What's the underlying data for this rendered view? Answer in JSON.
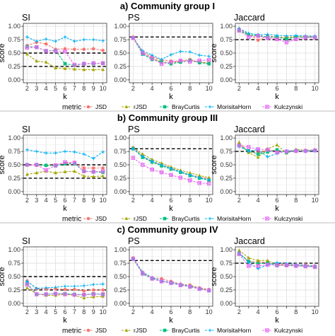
{
  "groups": [
    {
      "title": "a) Community group I"
    },
    {
      "title": "b) Community group III"
    },
    {
      "title": "c) Community group IV"
    }
  ],
  "panels": [
    "SI",
    "PS",
    "Jaccard"
  ],
  "legend": {
    "title": "metric",
    "items": [
      {
        "label": "JSD",
        "color": "#F8766D",
        "marker": "circle"
      },
      {
        "label": "rJSD",
        "color": "#A3A500",
        "marker": "triangle"
      },
      {
        "label": "BrayCurtis",
        "color": "#00BF7D",
        "marker": "square"
      },
      {
        "label": "MorisitaHorn",
        "color": "#00B0F6",
        "marker": "plus"
      },
      {
        "label": "Kulczynski",
        "color": "#E76BF3",
        "marker": "boxx"
      }
    ]
  },
  "chart_data": [
    {
      "type": "line",
      "group": "a) Community group I",
      "panel": "SI",
      "xlabel": "k",
      "ylabel": "score",
      "x": [
        2,
        3,
        4,
        5,
        6,
        7,
        8,
        9,
        10
      ],
      "ylim": [
        0,
        1.0
      ],
      "yticks": [
        "0.00",
        "0.25",
        "0.50",
        "0.75",
        "1.00"
      ],
      "reference_lines": [
        0.5,
        0.25
      ],
      "series": [
        {
          "name": "JSD",
          "values": [
            0.64,
            0.7,
            0.67,
            0.57,
            0.58,
            0.57,
            0.57,
            0.58,
            0.55
          ]
        },
        {
          "name": "rJSD",
          "values": [
            0.48,
            0.35,
            0.33,
            0.22,
            0.21,
            0.2,
            0.19,
            0.19,
            0.19
          ]
        },
        {
          "name": "BrayCurtis",
          "values": [
            0.62,
            0.61,
            0.54,
            0.55,
            0.3,
            0.27,
            0.3,
            0.3,
            0.31
          ]
        },
        {
          "name": "MorisitaHorn",
          "values": [
            0.8,
            0.72,
            0.76,
            0.72,
            0.8,
            0.72,
            0.75,
            0.75,
            0.73
          ]
        },
        {
          "name": "Kulczynski",
          "values": [
            0.6,
            0.61,
            0.54,
            0.54,
            0.53,
            0.28,
            0.3,
            0.31,
            0.31
          ]
        }
      ]
    },
    {
      "type": "line",
      "group": "a) Community group I",
      "panel": "PS",
      "xlabel": "k",
      "ylabel": "",
      "x": [
        2,
        3,
        4,
        5,
        6,
        7,
        8,
        9,
        10
      ],
      "ylim": [
        0,
        1.0
      ],
      "yticks": [
        "0.00",
        "0.25",
        "0.50",
        "0.75",
        "1.00"
      ],
      "reference_lines": [
        0.8
      ],
      "series": [
        {
          "name": "JSD",
          "values": [
            0.8,
            0.52,
            0.43,
            0.37,
            0.35,
            0.35,
            0.38,
            0.33,
            0.31
          ]
        },
        {
          "name": "rJSD",
          "values": [
            0.79,
            0.5,
            0.4,
            0.34,
            0.31,
            0.34,
            0.36,
            0.33,
            0.31
          ]
        },
        {
          "name": "BrayCurtis",
          "values": [
            0.78,
            0.48,
            0.38,
            0.33,
            0.3,
            0.33,
            0.36,
            0.32,
            0.3
          ]
        },
        {
          "name": "MorisitaHorn",
          "values": [
            0.78,
            0.54,
            0.46,
            0.38,
            0.47,
            0.53,
            0.52,
            0.46,
            0.44
          ]
        },
        {
          "name": "Kulczynski",
          "values": [
            0.78,
            0.5,
            0.4,
            0.3,
            0.33,
            0.36,
            0.34,
            0.36,
            0.37
          ]
        }
      ]
    },
    {
      "type": "line",
      "group": "a) Community group I",
      "panel": "Jaccard",
      "xlabel": "k",
      "ylabel": "score",
      "x": [
        2,
        3,
        4,
        5,
        6,
        7,
        8,
        9,
        10
      ],
      "ylim": [
        0,
        1.0
      ],
      "yticks": [
        "0.00",
        "0.25",
        "0.50",
        "0.75",
        "1.00"
      ],
      "reference_lines": [
        0.75
      ],
      "series": [
        {
          "name": "JSD",
          "values": [
            0.95,
            0.85,
            0.74,
            0.82,
            0.8,
            0.79,
            0.8,
            0.81,
            0.8
          ]
        },
        {
          "name": "rJSD",
          "values": [
            0.92,
            0.84,
            0.82,
            0.8,
            0.79,
            0.79,
            0.81,
            0.8,
            0.81
          ]
        },
        {
          "name": "BrayCurtis",
          "values": [
            0.93,
            0.84,
            0.83,
            0.8,
            0.8,
            0.76,
            0.8,
            0.8,
            0.8
          ]
        },
        {
          "name": "MorisitaHorn",
          "values": [
            0.96,
            0.87,
            0.84,
            0.85,
            0.83,
            0.82,
            0.83,
            0.82,
            0.82
          ]
        },
        {
          "name": "Kulczynski",
          "values": [
            0.92,
            0.8,
            0.82,
            0.78,
            0.76,
            0.7,
            0.76,
            0.79,
            0.79
          ]
        }
      ]
    },
    {
      "type": "line",
      "group": "b) Community group III",
      "panel": "SI",
      "xlabel": "k",
      "ylabel": "score",
      "x": [
        2,
        3,
        4,
        5,
        6,
        7,
        8,
        9,
        10
      ],
      "ylim": [
        0,
        1.0
      ],
      "yticks": [
        "0.00",
        "0.25",
        "0.50",
        "0.75",
        "1.00"
      ],
      "reference_lines": [
        0.5,
        0.25
      ],
      "series": [
        {
          "name": "JSD",
          "values": [
            0.5,
            0.49,
            0.49,
            0.5,
            0.53,
            0.54,
            0.44,
            0.44,
            0.44
          ]
        },
        {
          "name": "rJSD",
          "values": [
            0.32,
            0.35,
            0.38,
            0.35,
            0.37,
            0.38,
            0.29,
            0.28,
            0.29
          ]
        },
        {
          "name": "BrayCurtis",
          "values": [
            0.5,
            0.5,
            0.49,
            0.48,
            0.52,
            0.52,
            0.38,
            0.37,
            0.36
          ]
        },
        {
          "name": "MorisitaHorn",
          "values": [
            0.78,
            0.75,
            0.72,
            0.72,
            0.75,
            0.74,
            0.7,
            0.62,
            0.74
          ]
        },
        {
          "name": "Kulczynski",
          "values": [
            0.5,
            0.5,
            0.4,
            0.49,
            0.55,
            0.54,
            0.38,
            0.37,
            0.38
          ]
        }
      ]
    },
    {
      "type": "line",
      "group": "b) Community group III",
      "panel": "PS",
      "xlabel": "k",
      "ylabel": "",
      "x": [
        2,
        3,
        4,
        5,
        6,
        7,
        8,
        9,
        10
      ],
      "ylim": [
        0,
        1.0
      ],
      "yticks": [
        "0.00",
        "0.25",
        "0.50",
        "0.75",
        "1.00"
      ],
      "reference_lines": [
        0.8
      ],
      "series": [
        {
          "name": "JSD",
          "values": [
            0.82,
            0.65,
            0.56,
            0.5,
            0.44,
            0.37,
            0.31,
            0.27,
            0.24
          ]
        },
        {
          "name": "rJSD",
          "values": [
            0.82,
            0.7,
            0.6,
            0.53,
            0.46,
            0.4,
            0.35,
            0.3,
            0.26
          ]
        },
        {
          "name": "BrayCurtis",
          "values": [
            0.8,
            0.64,
            0.55,
            0.48,
            0.42,
            0.36,
            0.3,
            0.25,
            0.21
          ]
        },
        {
          "name": "MorisitaHorn",
          "values": [
            0.8,
            0.66,
            0.57,
            0.5,
            0.43,
            0.37,
            0.31,
            0.26,
            0.22
          ]
        },
        {
          "name": "Kulczynski",
          "values": [
            0.63,
            0.5,
            0.41,
            0.36,
            0.31,
            0.26,
            0.21,
            0.16,
            0.15
          ]
        }
      ]
    },
    {
      "type": "line",
      "group": "b) Community group III",
      "panel": "Jaccard",
      "xlabel": "k",
      "ylabel": "score",
      "x": [
        2,
        3,
        4,
        5,
        6,
        7,
        8,
        9,
        10
      ],
      "ylim": [
        0,
        1.0
      ],
      "yticks": [
        "0.00",
        "0.25",
        "0.50",
        "0.75",
        "1.00"
      ],
      "reference_lines": [
        0.75
      ],
      "series": [
        {
          "name": "JSD",
          "values": [
            0.88,
            0.74,
            0.72,
            0.78,
            0.76,
            0.74,
            0.75,
            0.77,
            0.77
          ]
        },
        {
          "name": "rJSD",
          "values": [
            0.92,
            0.73,
            0.64,
            0.8,
            0.87,
            0.72,
            0.79,
            0.77,
            0.78
          ]
        },
        {
          "name": "BrayCurtis",
          "values": [
            0.86,
            0.76,
            0.7,
            0.74,
            0.78,
            0.73,
            0.76,
            0.76,
            0.77
          ]
        },
        {
          "name": "MorisitaHorn",
          "values": [
            0.84,
            0.76,
            0.78,
            0.65,
            0.71,
            0.76,
            0.77,
            0.75,
            0.76
          ]
        },
        {
          "name": "Kulczynski",
          "values": [
            0.86,
            0.83,
            0.79,
            0.78,
            0.73,
            0.75,
            0.76,
            0.76,
            0.77
          ]
        }
      ]
    },
    {
      "type": "line",
      "group": "c) Community group IV",
      "panel": "SI",
      "xlabel": "k",
      "ylabel": "score",
      "x": [
        2,
        3,
        4,
        5,
        6,
        7,
        8,
        9,
        10
      ],
      "ylim": [
        0,
        1.0
      ],
      "yticks": [
        "0.00",
        "0.25",
        "0.50",
        "0.75",
        "1.00"
      ],
      "reference_lines": [
        0.5,
        0.25
      ],
      "series": [
        {
          "name": "JSD",
          "values": [
            0.42,
            0.27,
            0.27,
            0.27,
            0.26,
            0.26,
            0.23,
            0.25,
            0.25
          ]
        },
        {
          "name": "rJSD",
          "values": [
            0.29,
            0.18,
            0.15,
            0.15,
            0.17,
            0.15,
            0.1,
            0.12,
            0.13
          ]
        },
        {
          "name": "BrayCurtis",
          "values": [
            0.37,
            0.17,
            0.17,
            0.18,
            0.18,
            0.17,
            0.16,
            0.18,
            0.17
          ]
        },
        {
          "name": "MorisitaHorn",
          "values": [
            0.41,
            0.28,
            0.29,
            0.3,
            0.32,
            0.32,
            0.33,
            0.35,
            0.36
          ]
        },
        {
          "name": "Kulczynski",
          "values": [
            0.35,
            0.17,
            0.17,
            0.18,
            0.17,
            0.16,
            0.16,
            0.17,
            0.17
          ]
        }
      ]
    },
    {
      "type": "line",
      "group": "c) Community group IV",
      "panel": "PS",
      "xlabel": "k",
      "ylabel": "",
      "x": [
        2,
        3,
        4,
        5,
        6,
        7,
        8,
        9,
        10
      ],
      "ylim": [
        0,
        1.0
      ],
      "yticks": [
        "0.00",
        "0.25",
        "0.50",
        "0.75",
        "1.00"
      ],
      "reference_lines": [
        0.8
      ],
      "series": [
        {
          "name": "JSD",
          "values": [
            0.85,
            0.58,
            0.48,
            0.46,
            0.41,
            0.36,
            0.34,
            0.29,
            0.26
          ]
        },
        {
          "name": "rJSD",
          "values": [
            0.84,
            0.57,
            0.47,
            0.42,
            0.39,
            0.35,
            0.33,
            0.28,
            0.25
          ]
        },
        {
          "name": "BrayCurtis",
          "values": [
            0.83,
            0.55,
            0.46,
            0.41,
            0.38,
            0.34,
            0.31,
            0.27,
            0.24
          ]
        },
        {
          "name": "MorisitaHorn",
          "values": [
            0.84,
            0.58,
            0.48,
            0.42,
            0.39,
            0.35,
            0.32,
            0.27,
            0.24
          ]
        },
        {
          "name": "Kulczynski",
          "values": [
            0.83,
            0.56,
            0.46,
            0.41,
            0.38,
            0.34,
            0.31,
            0.27,
            0.24
          ]
        }
      ]
    },
    {
      "type": "line",
      "group": "c) Community group IV",
      "panel": "Jaccard",
      "xlabel": "k",
      "ylabel": "score",
      "x": [
        2,
        3,
        4,
        5,
        6,
        7,
        8,
        9,
        10
      ],
      "ylim": [
        0,
        1.0
      ],
      "yticks": [
        "0.00",
        "0.25",
        "0.50",
        "0.75",
        "1.00"
      ],
      "reference_lines": [
        0.75
      ],
      "series": [
        {
          "name": "JSD",
          "values": [
            0.94,
            0.79,
            0.77,
            0.76,
            0.73,
            0.73,
            0.72,
            0.72,
            0.7
          ]
        },
        {
          "name": "rJSD",
          "values": [
            0.99,
            0.85,
            0.8,
            0.8,
            0.72,
            0.71,
            0.7,
            0.7,
            0.69
          ]
        },
        {
          "name": "BrayCurtis",
          "values": [
            0.93,
            0.78,
            0.74,
            0.75,
            0.71,
            0.71,
            0.7,
            0.7,
            0.68
          ]
        },
        {
          "name": "MorisitaHorn",
          "values": [
            0.95,
            0.76,
            0.65,
            0.72,
            0.76,
            0.74,
            0.73,
            0.7,
            0.7
          ]
        },
        {
          "name": "Kulczynski",
          "values": [
            0.92,
            0.7,
            0.7,
            0.72,
            0.71,
            0.71,
            0.7,
            0.69,
            0.68
          ]
        }
      ]
    }
  ]
}
